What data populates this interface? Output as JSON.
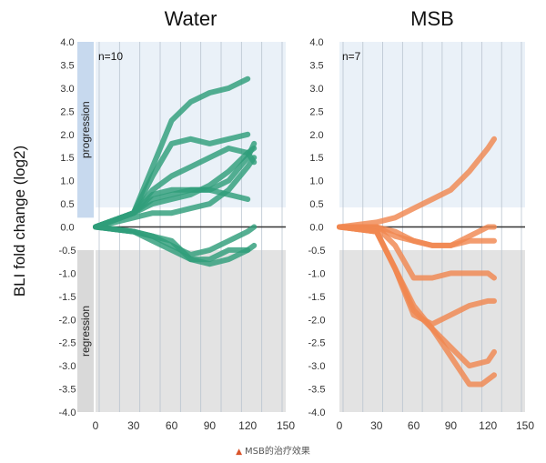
{
  "ylabel": "BLI fold change (log2)",
  "caption": "MSB的治疗效果",
  "caption_marker_color": "#d9542b",
  "zone_labels": {
    "progression": "progression",
    "regression": "regression"
  },
  "colors": {
    "progression_fill": "#eaf1f8",
    "regression_fill": "#e3e3e3",
    "band_progression": "#c7d9ee",
    "band_regression": "#d9d9d9",
    "grid": "#b9c4cf",
    "zero_line": "#333333"
  },
  "chart_data": [
    {
      "type": "line",
      "title": "Water",
      "n_label": "n=10",
      "color": "#2f9e7a",
      "xlim": [
        0,
        150
      ],
      "ylim": [
        -4,
        4
      ],
      "xticks": [
        0,
        30,
        60,
        90,
        120,
        150
      ],
      "yticks": [
        4.0,
        3.5,
        3.0,
        2.5,
        2.0,
        1.5,
        1.0,
        0.5,
        0.0,
        -0.5,
        -1.0,
        -1.5,
        -2.0,
        -2.5,
        -3.0,
        -3.5,
        -4.0
      ],
      "series": [
        {
          "x": [
            0,
            30,
            45,
            60,
            75,
            90,
            105,
            120
          ],
          "y": [
            0,
            0.3,
            1.3,
            2.3,
            2.7,
            2.9,
            3.0,
            3.2
          ]
        },
        {
          "x": [
            0,
            30,
            45,
            60,
            75,
            90,
            105,
            120
          ],
          "y": [
            0,
            0.3,
            1.1,
            1.8,
            1.9,
            1.8,
            1.9,
            2.0
          ]
        },
        {
          "x": [
            0,
            30,
            45,
            60,
            75,
            90,
            105,
            120,
            125
          ],
          "y": [
            0,
            0.3,
            0.8,
            1.1,
            1.3,
            1.5,
            1.7,
            1.6,
            1.4
          ]
        },
        {
          "x": [
            0,
            30,
            45,
            60,
            75,
            90,
            105,
            120,
            125
          ],
          "y": [
            0,
            0.3,
            0.6,
            0.7,
            0.8,
            0.8,
            1.0,
            1.5,
            1.8
          ]
        },
        {
          "x": [
            0,
            30,
            45,
            60,
            75,
            90,
            105,
            120,
            125
          ],
          "y": [
            0,
            0.3,
            0.5,
            0.6,
            0.7,
            0.9,
            1.2,
            1.6,
            1.7
          ]
        },
        {
          "x": [
            0,
            30,
            45,
            60,
            75,
            90,
            105,
            120
          ],
          "y": [
            0,
            0.3,
            0.7,
            0.8,
            0.8,
            0.8,
            0.7,
            0.6
          ]
        },
        {
          "x": [
            0,
            30,
            45,
            60,
            75,
            90,
            105,
            120,
            125
          ],
          "y": [
            0,
            0.2,
            0.3,
            0.3,
            0.4,
            0.5,
            0.8,
            1.3,
            1.5
          ]
        },
        {
          "x": [
            0,
            30,
            45,
            60,
            75,
            90,
            105,
            120,
            125
          ],
          "y": [
            0,
            -0.1,
            -0.2,
            -0.4,
            -0.6,
            -0.5,
            -0.3,
            -0.1,
            0.0
          ]
        },
        {
          "x": [
            0,
            30,
            45,
            60,
            75,
            90,
            105,
            120,
            125
          ],
          "y": [
            0,
            -0.1,
            -0.3,
            -0.5,
            -0.7,
            -0.8,
            -0.7,
            -0.5,
            -0.4
          ]
        },
        {
          "x": [
            0,
            30,
            45,
            60,
            75,
            90,
            105,
            120
          ],
          "y": [
            0,
            -0.1,
            -0.2,
            -0.3,
            -0.7,
            -0.7,
            -0.5,
            -0.5
          ]
        }
      ]
    },
    {
      "type": "line",
      "title": "MSB",
      "n_label": "n=7",
      "color": "#f08850",
      "xlim": [
        0,
        150
      ],
      "ylim": [
        -4,
        4
      ],
      "xticks": [
        0,
        30,
        60,
        90,
        120,
        150
      ],
      "yticks": [
        4.0,
        3.5,
        3.0,
        2.5,
        2.0,
        1.5,
        1.0,
        0.5,
        0.0,
        -0.5,
        -1.0,
        -1.5,
        -2.0,
        -2.5,
        -3.0,
        -3.5,
        -4.0
      ],
      "series": [
        {
          "x": [
            0,
            30,
            45,
            60,
            75,
            90,
            105,
            120,
            125
          ],
          "y": [
            0,
            0.1,
            0.2,
            0.4,
            0.6,
            0.8,
            1.2,
            1.7,
            1.9
          ]
        },
        {
          "x": [
            0,
            30,
            45,
            60,
            75,
            90,
            105,
            120,
            125
          ],
          "y": [
            0,
            0,
            -0.1,
            -0.3,
            -0.4,
            -0.4,
            -0.2,
            0,
            0
          ]
        },
        {
          "x": [
            0,
            30,
            45,
            60,
            75,
            90,
            105,
            120,
            125
          ],
          "y": [
            0,
            0,
            -0.2,
            -0.3,
            -0.4,
            -0.4,
            -0.3,
            -0.3,
            -0.3
          ]
        },
        {
          "x": [
            0,
            30,
            45,
            60,
            75,
            90,
            105,
            120,
            125
          ],
          "y": [
            0,
            0,
            -0.4,
            -1.1,
            -1.1,
            -1.0,
            -1.0,
            -1.0,
            -1.1
          ]
        },
        {
          "x": [
            0,
            30,
            45,
            60,
            75,
            90,
            105,
            120,
            125
          ],
          "y": [
            0,
            -0.1,
            -0.9,
            -1.9,
            -2.1,
            -1.9,
            -1.7,
            -1.6,
            -1.6
          ]
        },
        {
          "x": [
            0,
            30,
            45,
            60,
            75,
            90,
            105,
            120,
            125
          ],
          "y": [
            0,
            -0.1,
            -0.9,
            -1.8,
            -2.2,
            -2.6,
            -3.0,
            -2.9,
            -2.7
          ]
        },
        {
          "x": [
            0,
            30,
            45,
            60,
            75,
            90,
            105,
            115,
            125
          ],
          "y": [
            0,
            -0.1,
            -0.9,
            -1.7,
            -2.2,
            -2.8,
            -3.4,
            -3.4,
            -3.2
          ]
        }
      ]
    }
  ]
}
